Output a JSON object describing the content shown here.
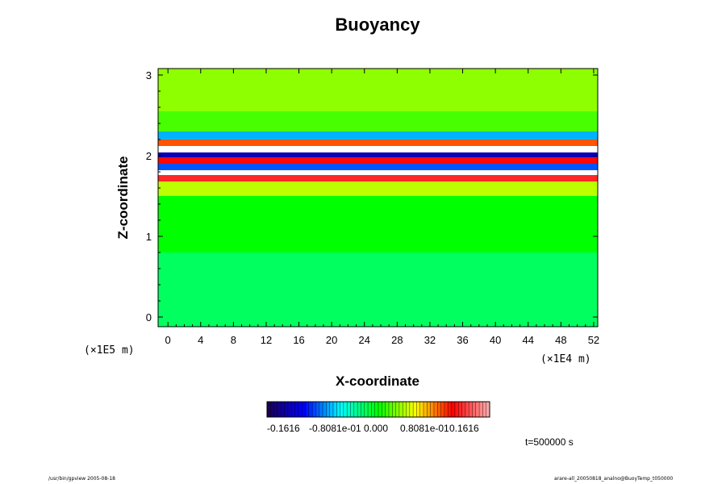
{
  "chart_data": {
    "type": "heatmap",
    "title": "Buoyancy",
    "xlabel": "X-coordinate",
    "ylabel": "Z-coordinate",
    "x_unit": "(×1E4 m)",
    "y_unit": "(×1E5 m)",
    "xlim": [
      -1.2,
      52.5
    ],
    "ylim": [
      -0.12,
      3.08
    ],
    "x_ticks": [
      0,
      4,
      8,
      12,
      16,
      20,
      24,
      28,
      32,
      36,
      40,
      44,
      48,
      52
    ],
    "y_ticks": [
      0,
      1,
      2,
      3
    ],
    "colorbar": {
      "ticks": [
        "-0.1616",
        "-0.8081e-01",
        "0.000",
        "0.8081e-01",
        "0.1616"
      ],
      "colors": [
        "#1a0050",
        "#0000ff",
        "#00ffff",
        "#00ff00",
        "#ffff00",
        "#ff0000",
        "#ffb0b0"
      ]
    },
    "field_description_bands": [
      {
        "z_min": -0.12,
        "z_max": 0.8,
        "value": -0.02
      },
      {
        "z_min": 0.8,
        "z_max": 1.5,
        "value": 0.0
      },
      {
        "z_min": 1.5,
        "z_max": 1.68,
        "value": 0.04
      },
      {
        "z_min": 1.68,
        "z_max": 1.76,
        "value": 0.12
      },
      {
        "z_min": 1.76,
        "z_max": 1.82,
        "value": 0.17
      },
      {
        "z_min": 1.82,
        "z_max": 1.9,
        "value": -0.09
      },
      {
        "z_min": 1.9,
        "z_max": 1.98,
        "value": 0.11
      },
      {
        "z_min": 1.98,
        "z_max": 2.04,
        "value": -0.13
      },
      {
        "z_min": 2.04,
        "z_max": 2.12,
        "value": 0.17
      },
      {
        "z_min": 2.12,
        "z_max": 2.2,
        "value": 0.09
      },
      {
        "z_min": 2.2,
        "z_max": 2.3,
        "value": -0.07
      },
      {
        "z_min": 2.3,
        "z_max": 2.55,
        "value": 0.015
      },
      {
        "z_min": 2.55,
        "z_max": 3.08,
        "value": 0.03
      }
    ]
  },
  "time_label": "t=500000 s",
  "footer": {
    "left": "/usr/bin/gpview 2005-08-18",
    "right": "arare-all_20050818_analno@BuoyTemp_t050000"
  }
}
